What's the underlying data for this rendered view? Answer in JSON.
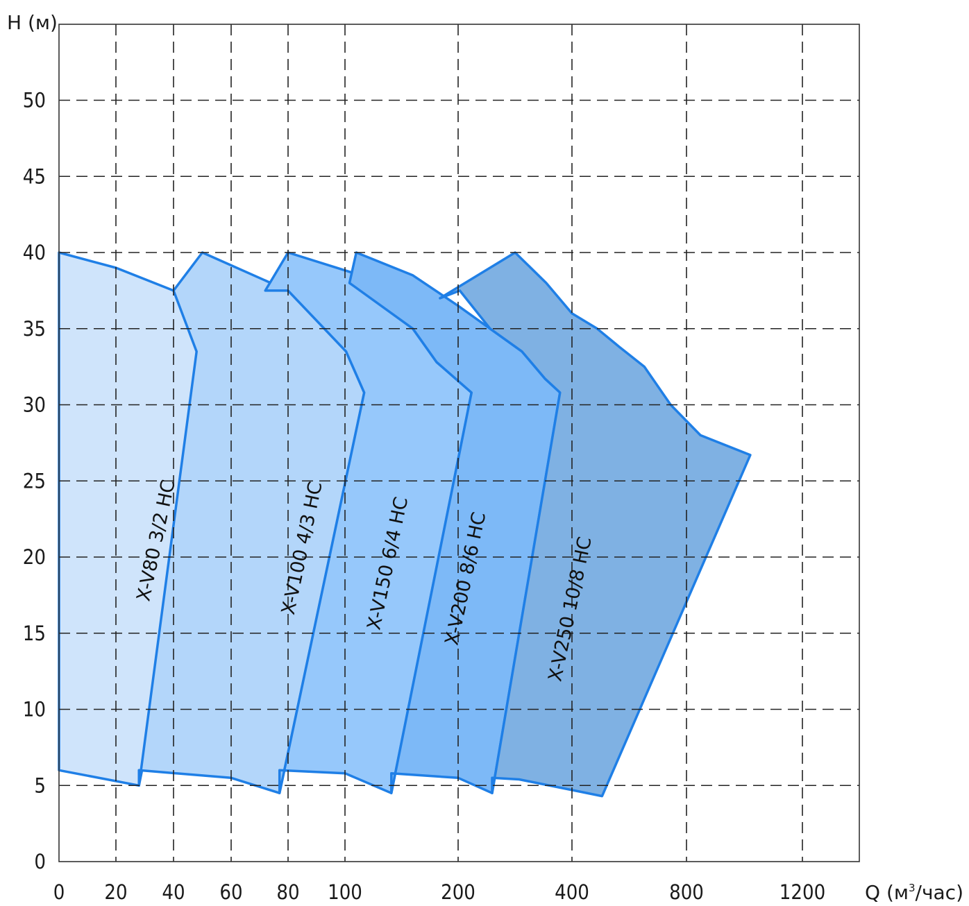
{
  "chart_data": {
    "type": "area",
    "title": "",
    "ylabel": "H (м)",
    "xlabel_prefix": "Q (м",
    "xlabel_sup": "3",
    "xlabel_suffix": "/час)",
    "x_tick_labels": [
      "0",
      "20",
      "40",
      "60",
      "80",
      "100",
      "200",
      "400",
      "800",
      "1200"
    ],
    "y_tick_labels": [
      "0",
      "5",
      "10",
      "15",
      "20",
      "25",
      "30",
      "35",
      "40",
      "45",
      "50"
    ],
    "ylim": [
      0,
      55
    ],
    "grid": true,
    "colors": {
      "outline": "#1f7fe6",
      "grid": "#222222"
    },
    "series": [
      {
        "name": "X-V80 3/2 НС",
        "fill": "#cfe4fb",
        "label_at": {
          "x": 36,
          "y": 21,
          "angle": -78
        },
        "points": [
          [
            0,
            40
          ],
          [
            20,
            39
          ],
          [
            40,
            37.5
          ],
          [
            60,
            35
          ],
          [
            28,
            5
          ],
          [
            0,
            6
          ]
        ]
      },
      {
        "name": "X-V100 4/3 НС",
        "fill": "#b3d6fa",
        "label_at": {
          "x": 87,
          "y": 20.5,
          "angle": -78
        },
        "points": [
          [
            50,
            40
          ],
          [
            80,
            37.5
          ],
          [
            101,
            33.5
          ],
          [
            117,
            30.8
          ],
          [
            77,
            4.5
          ],
          [
            60,
            5.5
          ],
          [
            28,
            6
          ],
          [
            28,
            5
          ],
          [
            48,
            33.5
          ],
          [
            40,
            37.5
          ]
        ]
      },
      {
        "name": "X-V150 6/4 НС",
        "fill": "#96c8fb",
        "label_at": {
          "x": 143,
          "y": 19.5,
          "angle": -78
        },
        "points": [
          [
            80,
            40
          ],
          [
            114,
            38.5
          ],
          [
            140,
            36.5
          ],
          [
            160,
            35
          ],
          [
            181,
            32.8
          ],
          [
            217,
            30.8
          ],
          [
            141,
            4.5
          ],
          [
            100,
            5.8
          ],
          [
            77,
            6
          ],
          [
            77,
            4.5
          ],
          [
            117,
            30.8
          ],
          [
            101,
            33.5
          ],
          [
            80,
            37.5
          ],
          [
            72,
            37.5
          ]
        ]
      },
      {
        "name": "X-V200 8/6 НС",
        "fill": "#7db9f7",
        "label_at": {
          "x": 217,
          "y": 18.5,
          "angle": -78
        },
        "points": [
          [
            110,
            40
          ],
          [
            160,
            38.5
          ],
          [
            200,
            36.5
          ],
          [
            243,
            35
          ],
          [
            295,
            33.5
          ],
          [
            340,
            31.7
          ],
          [
            372,
            30.8
          ],
          [
            246,
            4.5
          ],
          [
            200,
            5.5
          ],
          [
            141,
            5.8
          ],
          [
            141,
            4.5
          ],
          [
            217,
            30.8
          ],
          [
            181,
            32.8
          ],
          [
            160,
            35
          ],
          [
            104,
            38
          ]
        ]
      },
      {
        "name": "X-V250 10/8 НС",
        "fill": "#7fb1e3",
        "label_at": {
          "x": 410,
          "y": 16.5,
          "angle": -78
        },
        "points": [
          [
            283,
            40
          ],
          [
            342,
            38
          ],
          [
            400,
            36
          ],
          [
            466,
            35
          ],
          [
            533,
            33.8
          ],
          [
            620,
            32.5
          ],
          [
            727,
            30
          ],
          [
            840,
            28
          ],
          [
            1000,
            26.7
          ],
          [
            480,
            4.3
          ],
          [
            290,
            5.4
          ],
          [
            246,
            5.5
          ],
          [
            246,
            4.5
          ],
          [
            372,
            30.8
          ],
          [
            340,
            31.7
          ],
          [
            295,
            33.5
          ],
          [
            243,
            35
          ],
          [
            202,
            37.5
          ],
          [
            184,
            37
          ]
        ]
      }
    ]
  }
}
